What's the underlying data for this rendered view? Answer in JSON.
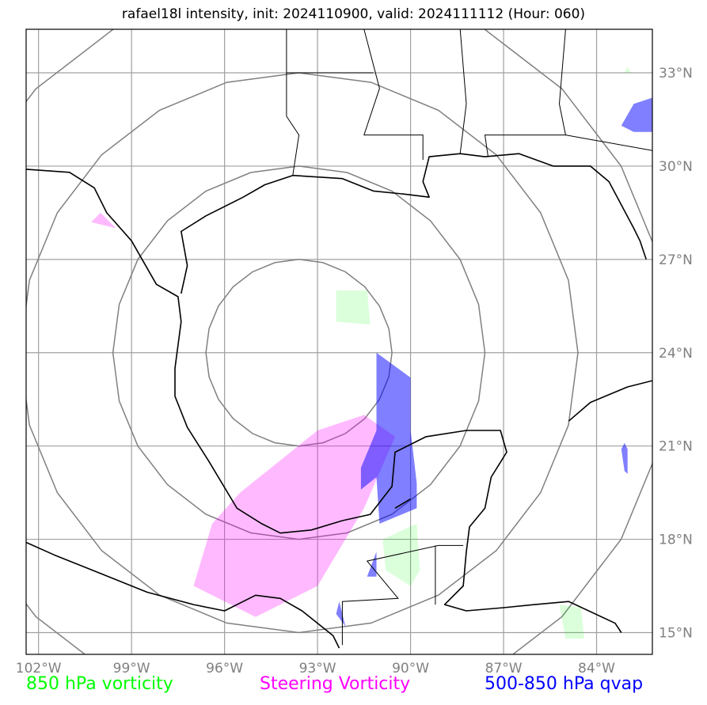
{
  "title": "rafael18l intensity, init: 2024110900, valid: 2024111112 (Hour: 060)",
  "map": {
    "lon_min": -102.4,
    "lon_max": -82.2,
    "lat_min": 14.3,
    "lat_max": 34.4,
    "lon_ticks": [
      {
        "value": -102,
        "label": "102°W"
      },
      {
        "value": -99,
        "label": "99°W"
      },
      {
        "value": -96,
        "label": "96°W"
      },
      {
        "value": -93,
        "label": "93°W"
      },
      {
        "value": -90,
        "label": "90°W"
      },
      {
        "value": -87,
        "label": "87°W"
      },
      {
        "value": -84,
        "label": "84°W"
      }
    ],
    "lat_ticks": [
      {
        "value": 33,
        "label": "33°N"
      },
      {
        "value": 30,
        "label": "30°N"
      },
      {
        "value": 27,
        "label": "27°N"
      },
      {
        "value": 24,
        "label": "24°N"
      },
      {
        "value": 21,
        "label": "21°N"
      },
      {
        "value": 18,
        "label": "18°N"
      },
      {
        "value": 15,
        "label": "15°N"
      }
    ],
    "range_rings": {
      "center": {
        "lon": -93.6,
        "lat": 24.0
      },
      "radius_deg": [
        3,
        6,
        9,
        12
      ]
    }
  },
  "legend": {
    "vorticity_850": {
      "label": "850 hPa vorticity",
      "color": "#00ff00"
    },
    "steering": {
      "label": "Steering Vorticity",
      "color": "#ff00ff"
    },
    "qvap": {
      "label": "500-850 hPa qvap",
      "color": "#0000ff"
    }
  },
  "fields": {
    "vorticity_850": [
      [
        [
          -92.4,
          25.0
        ],
        [
          -91.3,
          24.9
        ],
        [
          -91.4,
          26.0
        ],
        [
          -92.4,
          26.0
        ]
      ],
      [
        [
          -90.9,
          18.0
        ],
        [
          -89.8,
          18.5
        ],
        [
          -89.7,
          17.0
        ],
        [
          -90.0,
          16.5
        ],
        [
          -90.8,
          17.0
        ]
      ],
      [
        [
          -85.2,
          15.9
        ],
        [
          -84.5,
          15.8
        ],
        [
          -84.4,
          14.8
        ],
        [
          -85.0,
          14.8
        ]
      ],
      [
        [
          -83.1,
          33.0
        ],
        [
          -83.0,
          33.2
        ],
        [
          -82.9,
          33.0
        ]
      ]
    ],
    "steering": [
      [
        [
          -95.5,
          19.5
        ],
        [
          -93.0,
          21.5
        ],
        [
          -91.5,
          22.0
        ],
        [
          -90.5,
          21.3
        ],
        [
          -91.5,
          19.0
        ],
        [
          -93.0,
          16.5
        ],
        [
          -95.0,
          15.5
        ],
        [
          -97.0,
          16.5
        ],
        [
          -96.4,
          18.5
        ]
      ],
      [
        [
          -100.3,
          28.2
        ],
        [
          -99.5,
          28.0
        ],
        [
          -100.0,
          28.5
        ]
      ]
    ],
    "qvap": [
      [
        [
          -91.1,
          24.0
        ],
        [
          -90.0,
          23.2
        ],
        [
          -90.0,
          21.5
        ],
        [
          -89.8,
          19.8
        ],
        [
          -89.8,
          19.0
        ],
        [
          -91.0,
          18.5
        ],
        [
          -91.1,
          20.0
        ],
        [
          -91.6,
          19.6
        ],
        [
          -91.6,
          20.3
        ],
        [
          -91.1,
          21.5
        ]
      ],
      [
        [
          -82.2,
          32.2
        ],
        [
          -82.8,
          32.0
        ],
        [
          -83.2,
          31.3
        ],
        [
          -82.8,
          31.1
        ],
        [
          -82.2,
          31.1
        ]
      ],
      [
        [
          -83.1,
          21.1
        ],
        [
          -83.0,
          20.9
        ],
        [
          -83.0,
          20.1
        ],
        [
          -83.1,
          20.2
        ],
        [
          -83.2,
          20.9
        ]
      ],
      [
        [
          -91.1,
          17.6
        ],
        [
          -91.1,
          16.8
        ],
        [
          -91.4,
          16.8
        ]
      ],
      [
        [
          -92.3,
          16.0
        ],
        [
          -92.1,
          15.2
        ],
        [
          -92.4,
          15.6
        ]
      ]
    ]
  },
  "coastlines": [
    [
      [
        -102.4,
        29.9
      ],
      [
        -101.0,
        29.8
      ],
      [
        -100.2,
        29.3
      ],
      [
        -99.8,
        28.5
      ],
      [
        -99.0,
        27.6
      ],
      [
        -98.2,
        26.2
      ],
      [
        -97.5,
        25.8
      ],
      [
        -97.4,
        25.0
      ],
      [
        -97.6,
        23.5
      ],
      [
        -97.6,
        22.6
      ],
      [
        -97.2,
        21.6
      ],
      [
        -96.5,
        20.5
      ],
      [
        -95.6,
        19.0
      ],
      [
        -94.8,
        18.5
      ],
      [
        -94.2,
        18.2
      ],
      [
        -93.2,
        18.3
      ],
      [
        -92.2,
        18.6
      ],
      [
        -91.3,
        18.8
      ],
      [
        -90.6,
        19.7
      ],
      [
        -90.5,
        20.8
      ],
      [
        -89.5,
        21.3
      ],
      [
        -88.2,
        21.5
      ],
      [
        -87.1,
        21.5
      ],
      [
        -86.9,
        20.8
      ],
      [
        -87.4,
        20.0
      ],
      [
        -87.6,
        19.0
      ],
      [
        -88.1,
        18.4
      ],
      [
        -88.2,
        17.6
      ],
      [
        -88.3,
        16.5
      ],
      [
        -88.9,
        15.9
      ],
      [
        -88.2,
        15.7
      ],
      [
        -87.0,
        15.8
      ],
      [
        -86.0,
        15.9
      ],
      [
        -84.9,
        16.0
      ],
      [
        -83.4,
        15.3
      ],
      [
        -83.2,
        15.0
      ]
    ],
    [
      [
        -97.4,
        25.9
      ],
      [
        -97.2,
        26.8
      ],
      [
        -97.4,
        27.9
      ],
      [
        -96.6,
        28.4
      ],
      [
        -95.4,
        29.0
      ],
      [
        -94.7,
        29.4
      ],
      [
        -93.8,
        29.7
      ],
      [
        -92.2,
        29.6
      ],
      [
        -91.2,
        29.2
      ],
      [
        -90.2,
        29.1
      ],
      [
        -89.4,
        29.0
      ],
      [
        -89.6,
        29.5
      ],
      [
        -89.4,
        30.3
      ],
      [
        -88.4,
        30.4
      ],
      [
        -87.6,
        30.3
      ],
      [
        -86.5,
        30.4
      ],
      [
        -85.4,
        30.0
      ],
      [
        -84.2,
        30.0
      ],
      [
        -83.6,
        29.5
      ],
      [
        -82.8,
        28.0
      ],
      [
        -82.6,
        27.6
      ],
      [
        -82.4,
        27.0
      ]
    ],
    [
      [
        -102.4,
        17.9
      ],
      [
        -101.5,
        17.5
      ],
      [
        -100.0,
        16.9
      ],
      [
        -98.5,
        16.3
      ],
      [
        -97.0,
        15.9
      ],
      [
        -96.0,
        15.7
      ],
      [
        -95.0,
        16.2
      ],
      [
        -94.2,
        16.1
      ],
      [
        -93.5,
        15.7
      ],
      [
        -92.5,
        14.9
      ],
      [
        -92.3,
        14.5
      ]
    ],
    [
      [
        -84.9,
        21.8
      ],
      [
        -84.2,
        22.4
      ],
      [
        -83.0,
        22.9
      ],
      [
        -82.2,
        23.1
      ]
    ],
    [
      [
        -90.5,
        19.0
      ],
      [
        -90.0,
        19.3
      ]
    ]
  ],
  "borders": [
    [
      [
        -94.0,
        33.0
      ],
      [
        -91.2,
        33.0
      ]
    ],
    [
      [
        -94.0,
        34.4
      ],
      [
        -94.0,
        33.0
      ],
      [
        -94.0,
        31.6
      ],
      [
        -93.6,
        31.0
      ],
      [
        -93.8,
        29.7
      ]
    ],
    [
      [
        -91.5,
        34.4
      ],
      [
        -91.0,
        32.5
      ],
      [
        -91.5,
        31.0
      ],
      [
        -89.6,
        31.0
      ],
      [
        -89.6,
        30.2
      ]
    ],
    [
      [
        -88.4,
        34.4
      ],
      [
        -88.2,
        32.0
      ],
      [
        -88.4,
        30.4
      ]
    ],
    [
      [
        -85.0,
        34.4
      ],
      [
        -85.2,
        32.0
      ],
      [
        -85.0,
        31.0
      ],
      [
        -87.6,
        31.0
      ],
      [
        -87.5,
        30.3
      ]
    ],
    [
      [
        -85.0,
        31.0
      ],
      [
        -82.2,
        30.5
      ]
    ],
    [
      [
        -92.2,
        14.6
      ],
      [
        -92.2,
        16.0
      ],
      [
        -90.4,
        16.1
      ],
      [
        -91.4,
        17.3
      ],
      [
        -89.1,
        17.8
      ],
      [
        -88.3,
        17.8
      ]
    ],
    [
      [
        -89.2,
        17.8
      ],
      [
        -89.2,
        15.9
      ]
    ]
  ]
}
